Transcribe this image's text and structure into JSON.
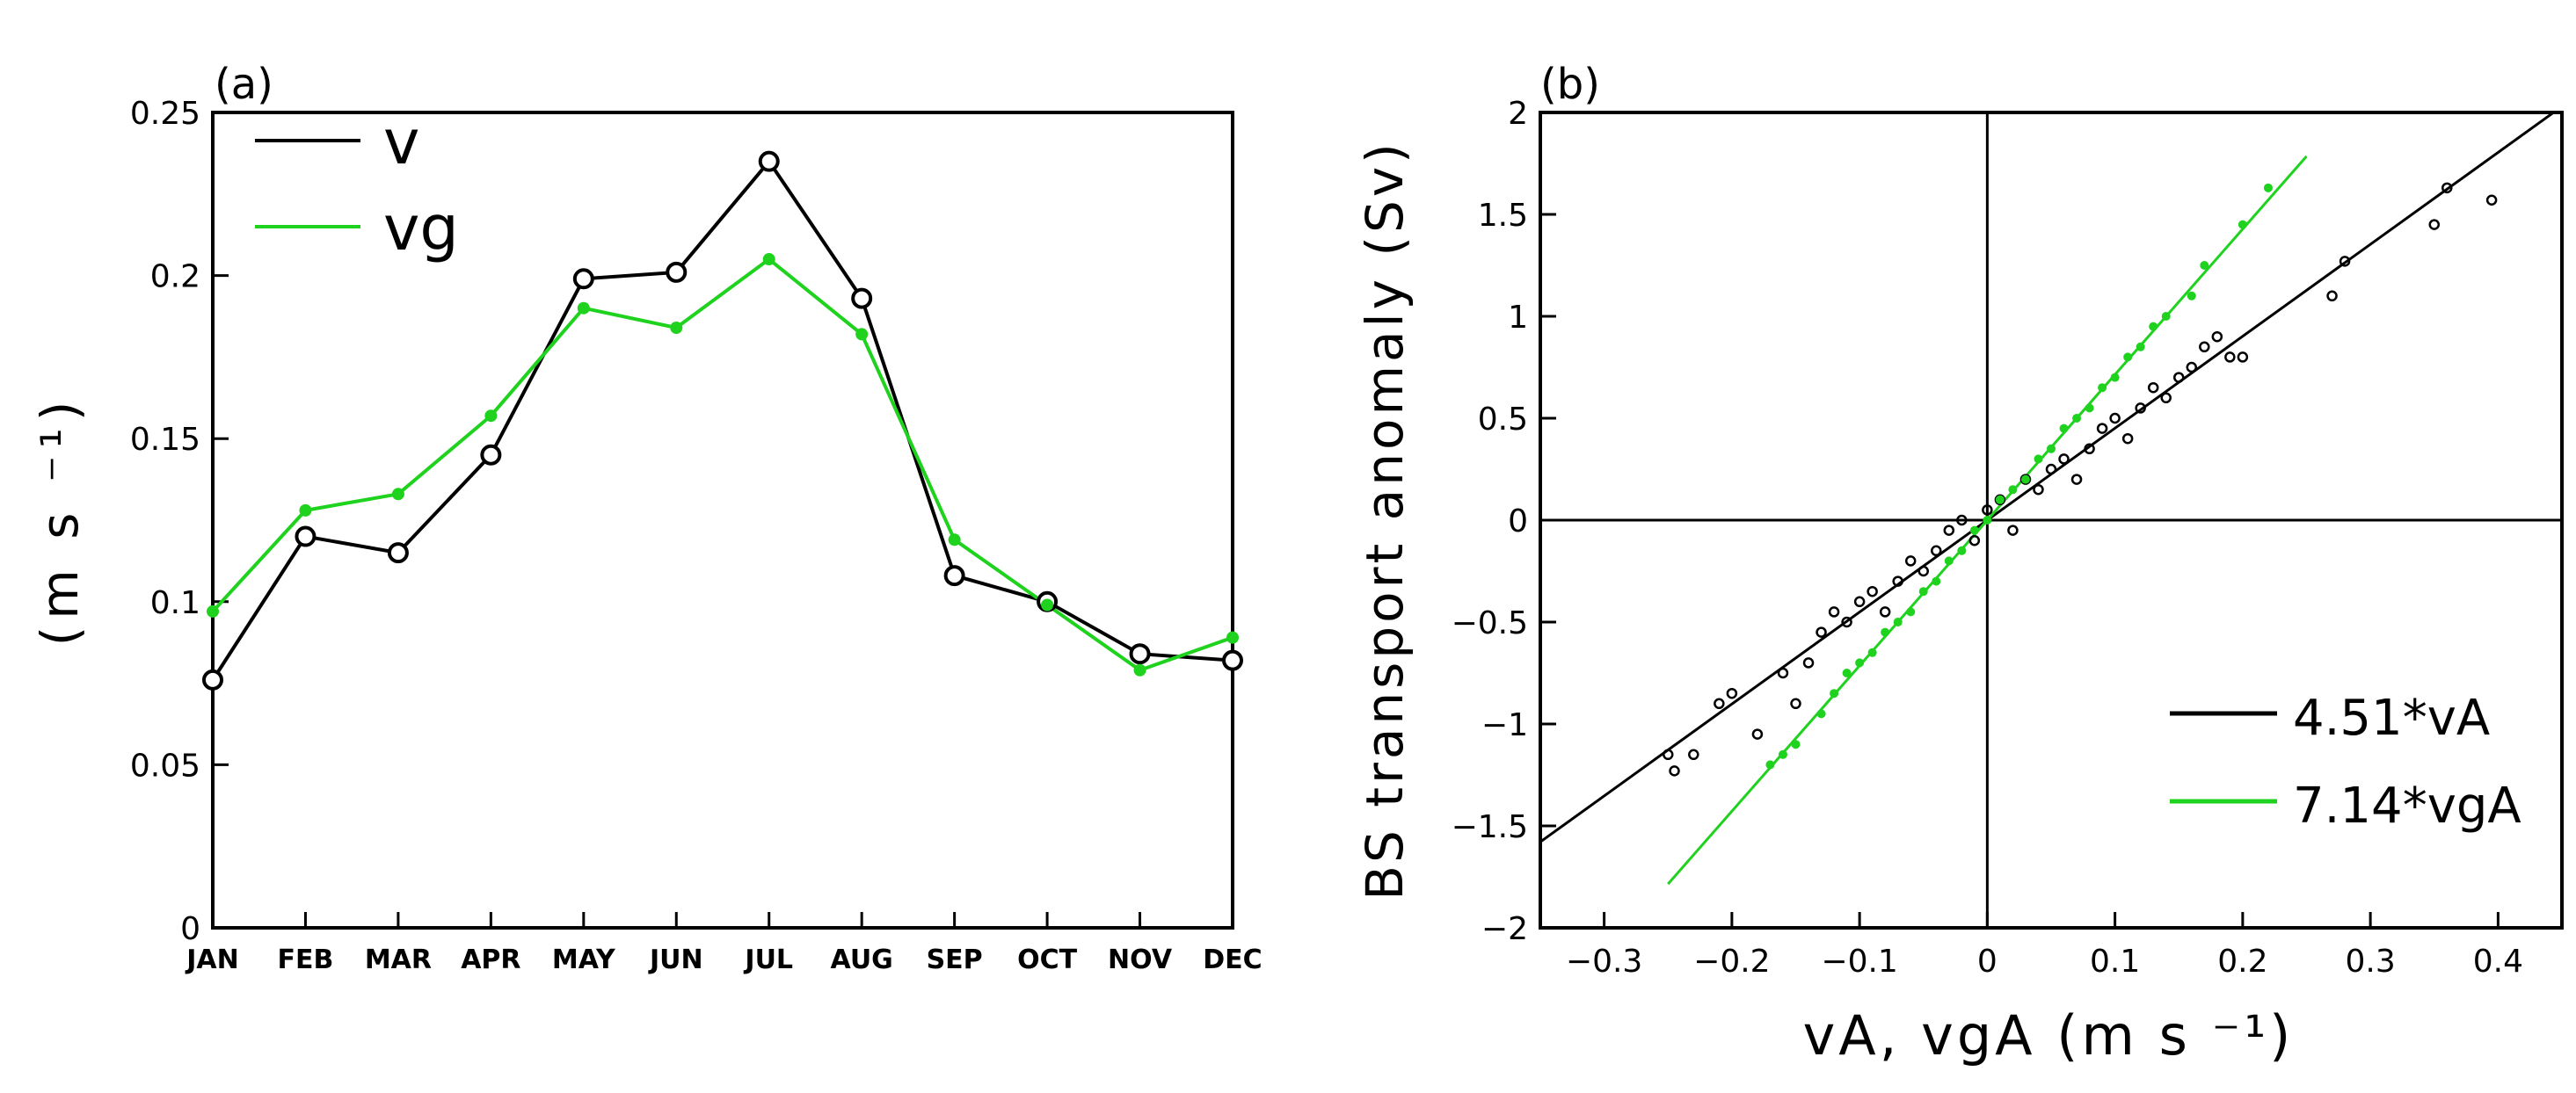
{
  "colors": {
    "black": "#000000",
    "green": "#1ed21e",
    "background": "#ffffff"
  },
  "chart_data": [
    {
      "panel_label": "(a)",
      "type": "line",
      "ylabel": "(m s ⁻¹)",
      "ylim": [
        0,
        0.25
      ],
      "yticks": [
        0,
        0.05,
        0.1,
        0.15,
        0.2,
        0.25
      ],
      "ytick_labels": [
        "0",
        "0.05",
        "0.1",
        "0.15",
        "0.2",
        "0.25"
      ],
      "categories": [
        "JAN",
        "FEB",
        "MAR",
        "APR",
        "MAY",
        "JUN",
        "JUL",
        "AUG",
        "SEP",
        "OCT",
        "NOV",
        "DEC"
      ],
      "legend_position": "top-left",
      "series": [
        {
          "name": "v",
          "color": "#000000",
          "marker": "open-circle",
          "values": [
            0.076,
            0.12,
            0.115,
            0.145,
            0.199,
            0.201,
            0.235,
            0.193,
            0.108,
            0.1,
            0.084,
            0.082
          ]
        },
        {
          "name": "vg",
          "color": "#1ed21e",
          "marker": "filled-dot",
          "values": [
            0.097,
            0.128,
            0.133,
            0.157,
            0.19,
            0.184,
            0.205,
            0.182,
            0.119,
            0.099,
            0.079,
            0.089
          ]
        }
      ]
    },
    {
      "panel_label": "(b)",
      "type": "scatter",
      "xlabel": "vA, vgA (m s ⁻¹)",
      "ylabel": "BS transport anomaly (Sv)",
      "xlim": [
        -0.35,
        0.45
      ],
      "ylim": [
        -2,
        2
      ],
      "xticks": [
        -0.3,
        -0.2,
        -0.1,
        0,
        0.1,
        0.2,
        0.3,
        0.4
      ],
      "xtick_labels": [
        "−0.3",
        "−0.2",
        "−0.1",
        "0",
        "0.1",
        "0.2",
        "0.3",
        "0.4"
      ],
      "yticks": [
        -2,
        -1.5,
        -1,
        -0.5,
        0,
        0.5,
        1,
        1.5,
        2
      ],
      "ytick_labels": [
        "−2",
        "−1.5",
        "−1",
        "−0.5",
        "0",
        "0.5",
        "1",
        "1.5",
        "2"
      ],
      "zero_lines": true,
      "legend_position": "bottom-right",
      "series": [
        {
          "name": "4.51*vA",
          "color": "#000000",
          "marker": "open-circle",
          "slope": 4.51,
          "line_x": [
            -0.35,
            0.45
          ],
          "points": [
            [
              -0.25,
              -1.15
            ],
            [
              -0.245,
              -1.23
            ],
            [
              -0.23,
              -1.15
            ],
            [
              -0.21,
              -0.9
            ],
            [
              -0.2,
              -0.85
            ],
            [
              -0.18,
              -1.05
            ],
            [
              -0.16,
              -0.75
            ],
            [
              -0.15,
              -0.9
            ],
            [
              -0.14,
              -0.7
            ],
            [
              -0.13,
              -0.55
            ],
            [
              -0.12,
              -0.45
            ],
            [
              -0.11,
              -0.5
            ],
            [
              -0.1,
              -0.4
            ],
            [
              -0.09,
              -0.35
            ],
            [
              -0.08,
              -0.45
            ],
            [
              -0.07,
              -0.3
            ],
            [
              -0.06,
              -0.2
            ],
            [
              -0.05,
              -0.25
            ],
            [
              -0.04,
              -0.15
            ],
            [
              -0.03,
              -0.05
            ],
            [
              -0.02,
              0.0
            ],
            [
              -0.01,
              -0.1
            ],
            [
              0.0,
              0.05
            ],
            [
              0.01,
              0.1
            ],
            [
              0.02,
              -0.05
            ],
            [
              0.03,
              0.2
            ],
            [
              0.04,
              0.15
            ],
            [
              0.05,
              0.25
            ],
            [
              0.06,
              0.3
            ],
            [
              0.07,
              0.2
            ],
            [
              0.08,
              0.35
            ],
            [
              0.09,
              0.45
            ],
            [
              0.1,
              0.5
            ],
            [
              0.11,
              0.4
            ],
            [
              0.12,
              0.55
            ],
            [
              0.13,
              0.65
            ],
            [
              0.14,
              0.6
            ],
            [
              0.15,
              0.7
            ],
            [
              0.16,
              0.75
            ],
            [
              0.17,
              0.85
            ],
            [
              0.18,
              0.9
            ],
            [
              0.19,
              0.8
            ],
            [
              0.2,
              0.8
            ],
            [
              0.27,
              1.1
            ],
            [
              0.28,
              1.27
            ],
            [
              0.35,
              1.45
            ],
            [
              0.36,
              1.63
            ],
            [
              0.395,
              1.57
            ]
          ]
        },
        {
          "name": "7.14*vgA",
          "color": "#1ed21e",
          "marker": "filled-dot",
          "slope": 7.14,
          "line_x": [
            -0.25,
            0.25
          ],
          "points": [
            [
              -0.17,
              -1.2
            ],
            [
              -0.16,
              -1.15
            ],
            [
              -0.15,
              -1.1
            ],
            [
              -0.13,
              -0.95
            ],
            [
              -0.12,
              -0.85
            ],
            [
              -0.11,
              -0.75
            ],
            [
              -0.1,
              -0.7
            ],
            [
              -0.09,
              -0.65
            ],
            [
              -0.08,
              -0.55
            ],
            [
              -0.07,
              -0.5
            ],
            [
              -0.06,
              -0.45
            ],
            [
              -0.05,
              -0.35
            ],
            [
              -0.04,
              -0.3
            ],
            [
              -0.03,
              -0.2
            ],
            [
              -0.02,
              -0.15
            ],
            [
              -0.01,
              -0.05
            ],
            [
              0.0,
              0.0
            ],
            [
              0.01,
              0.1
            ],
            [
              0.02,
              0.15
            ],
            [
              0.03,
              0.2
            ],
            [
              0.04,
              0.3
            ],
            [
              0.05,
              0.35
            ],
            [
              0.06,
              0.45
            ],
            [
              0.07,
              0.5
            ],
            [
              0.08,
              0.55
            ],
            [
              0.09,
              0.65
            ],
            [
              0.1,
              0.7
            ],
            [
              0.11,
              0.8
            ],
            [
              0.12,
              0.85
            ],
            [
              0.13,
              0.95
            ],
            [
              0.14,
              1.0
            ],
            [
              0.16,
              1.1
            ],
            [
              0.17,
              1.25
            ],
            [
              0.2,
              1.45
            ],
            [
              0.22,
              1.63
            ]
          ]
        }
      ]
    }
  ]
}
